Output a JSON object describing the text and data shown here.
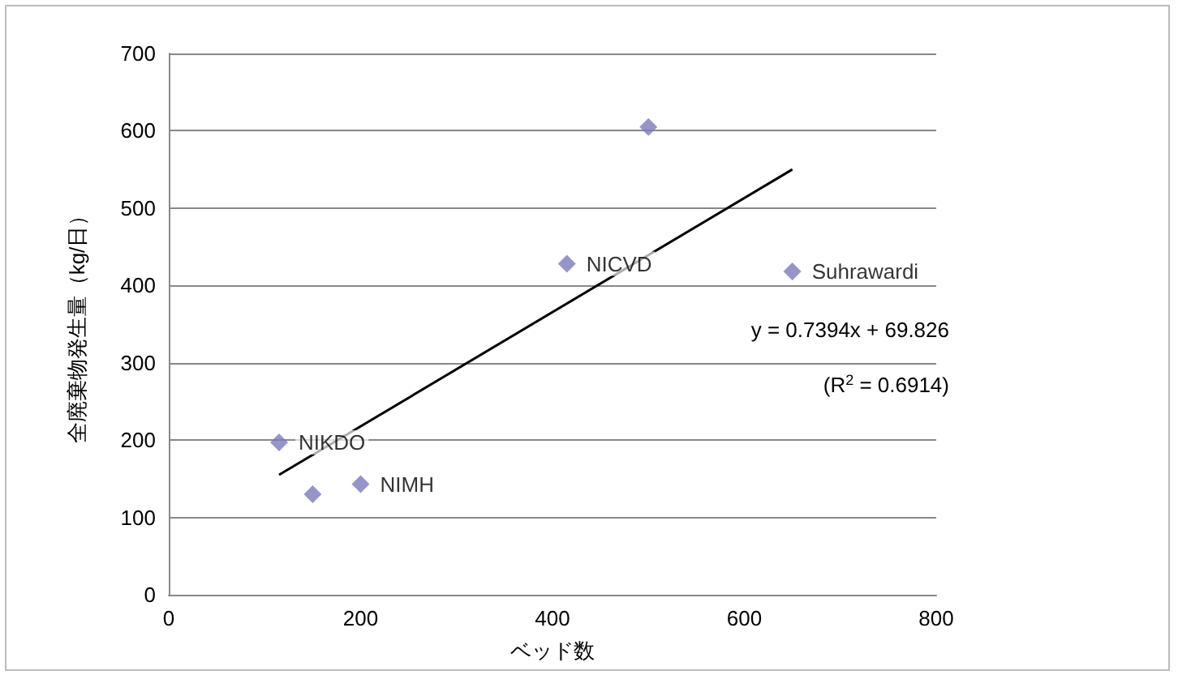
{
  "chart_data": {
    "type": "scatter",
    "xlabel": "ベッド数",
    "ylabel": "全廃棄物発生量（kg/日）",
    "series": [
      {
        "color": "#7b7bbd",
        "marker": "diamond",
        "x": [
          115,
          150,
          200,
          415,
          500,
          650
        ],
        "values": [
          197,
          130,
          143,
          428,
          605,
          418
        ]
      },
      {
        "type": "line",
        "color": "#000000",
        "marker": "none",
        "x": [
          115,
          650
        ],
        "values": [
          155,
          550
        ]
      }
    ],
    "annotations": [
      {
        "text": "NIKDO",
        "x": 115,
        "y": 197
      },
      {
        "text": "NIMH",
        "x": 200,
        "y": 143
      },
      {
        "text": "NICVD",
        "x": 415,
        "y": 428
      },
      {
        "text": "Suhrawardi",
        "x": 650,
        "y": 418
      },
      "y = 0.7394x + 69.826",
      "(R$^{2}$ = 0.6914)"
    ],
    "xlim": [
      0,
      800
    ],
    "xticks": [
      0,
      200,
      400,
      600,
      800
    ],
    "ylim": [
      0,
      700
    ],
    "yticks": [
      0,
      100,
      200,
      300,
      400,
      500,
      600,
      700
    ],
    "grid": "y"
  }
}
